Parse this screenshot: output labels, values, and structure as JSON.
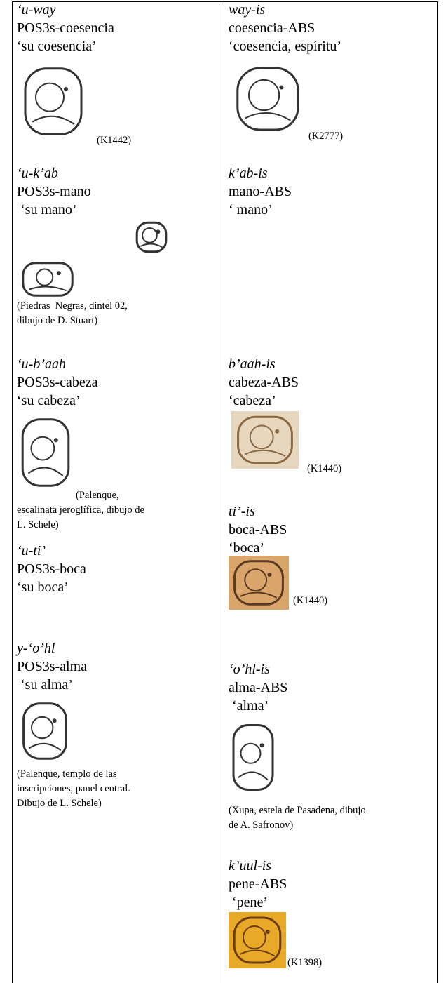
{
  "columns": [
    {
      "entries": [
        {
          "word": "‘u-way",
          "gloss": "POS3s-coesencia",
          "translation": "‘su coesencia’",
          "caption": [
            "(K1442)"
          ]
        },
        {
          "word": "‘u-k’ab",
          "gloss": "POS3s-mano",
          "translation": " ‘su mano’",
          "caption": [
            "(Piedras  Negras, dintel 02,",
            "dibujo de D. Stuart)"
          ]
        },
        {
          "word": "‘u-b’aah",
          "gloss": "POS3s-cabeza",
          "translation": "‘su cabeza’",
          "caption": [
            "(Palenque,",
            "escalinata jeroglífica, dibujo de",
            "L. Schele)"
          ]
        },
        {
          "word": "‘u-ti’",
          "gloss": "POS3s-boca",
          "translation": "‘su boca’"
        },
        {
          "word": "y-‘o’hl",
          "gloss": "POS3s-alma",
          "translation": " ‘su alma’",
          "caption": [
            "(Palenque, templo de las",
            "inscripciones, panel central.",
            "Dibujo de L. Schele)"
          ]
        }
      ]
    },
    {
      "entries": [
        {
          "word": "way-is",
          "gloss": "coesencia-ABS",
          "translation": "‘coesencia, espíritu’",
          "caption": [
            "(K2777)"
          ]
        },
        {
          "word": "k’ab-is",
          "gloss": "mano-ABS",
          "translation": "‘ mano’"
        },
        {
          "word": "b’aah-is",
          "gloss": "cabeza-ABS",
          "translation": "‘cabeza’",
          "caption": [
            "(K1440)"
          ]
        },
        {
          "word": "ti’-is",
          "gloss": "boca-ABS",
          "translation": "‘boca’",
          "caption": [
            "(K1440)"
          ]
        },
        {
          "word": "‘o’hl-is",
          "gloss": "alma-ABS",
          "translation": " ‘alma’",
          "caption": [
            "(Xupa, estela de Pasadena, dibujo",
            "de A. Safronov)"
          ]
        },
        {
          "word": "k’uul-is",
          "gloss": "pene-ABS",
          "translation": " ‘pene’",
          "caption": [
            "(K1398)"
          ]
        }
      ]
    }
  ]
}
